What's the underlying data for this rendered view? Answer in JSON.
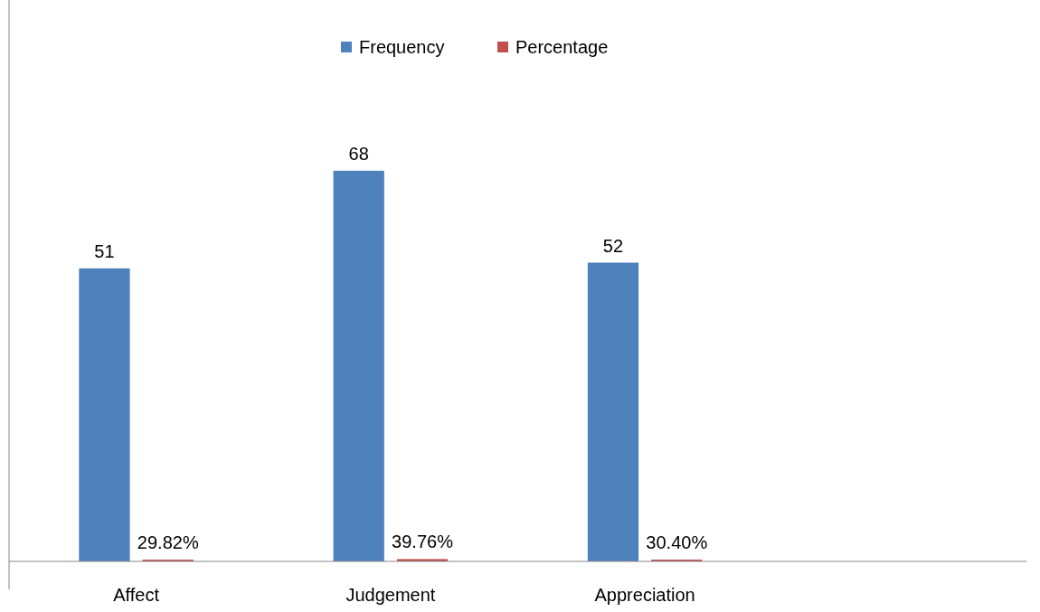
{
  "chart_data": {
    "type": "bar",
    "categories": [
      "Affect",
      "Judgement",
      "Appreciation",
      null
    ],
    "series": [
      {
        "name": "Frequency",
        "color": "#4f81bd",
        "values": [
          51,
          68,
          52,
          null
        ],
        "value_labels": [
          "51",
          "68",
          "52",
          null
        ]
      },
      {
        "name": "Percentage",
        "color": "#c0504d",
        "values": [
          0.2982,
          0.3976,
          0.304,
          null
        ],
        "value_labels": [
          "29.82%",
          "39.76%",
          "30.40%",
          null
        ]
      }
    ],
    "tick_labels": "x",
    "legend": "top"
  }
}
